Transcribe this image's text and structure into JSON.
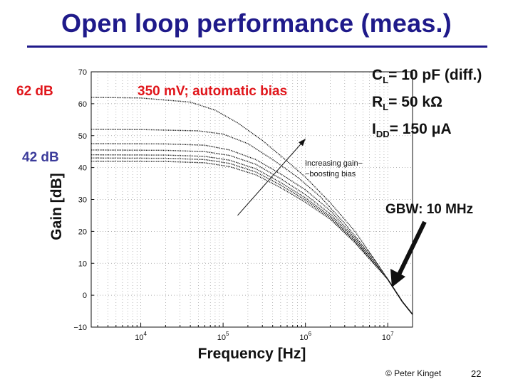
{
  "slide": {
    "title": "Open loop performance (meas.)",
    "credit": "© Peter Kinget",
    "page_number": "22",
    "specs": {
      "cl_label": "C",
      "cl_sub": "L",
      "cl_value": "= 10 pF (diff.)",
      "rl_label": "R",
      "rl_sub": "L",
      "rl_value": "= 50 kΩ",
      "idd_label": "I",
      "idd_sub": "DD",
      "idd_value": "= 150 μA"
    },
    "callouts": {
      "gain_62": "62 dB",
      "gain_42": "42 dB",
      "auto_bias": "350 mV; automatic bias",
      "gbw": "GBW: 10 MHz"
    },
    "colors": {
      "title": "#1f1a8a",
      "callout_red": "#e0161b",
      "callout_blue": "#3b3b9a",
      "curve": "#111111",
      "grid": "#9a9a9a"
    }
  },
  "chart_data": {
    "type": "line",
    "xscale": "log",
    "xlabel": "Frequency [Hz]",
    "ylabel": "Gain [dB]",
    "xlim": [
      2500,
      20000000
    ],
    "ylim": [
      -10,
      70
    ],
    "yticks": [
      -10,
      0,
      10,
      20,
      30,
      40,
      50,
      60,
      70
    ],
    "xticks": [
      {
        "value": 10000,
        "base": "10",
        "exp": "4"
      },
      {
        "value": 100000,
        "base": "10",
        "exp": "5"
      },
      {
        "value": 1000000,
        "base": "10",
        "exp": "6"
      },
      {
        "value": 10000000,
        "base": "10",
        "exp": "7"
      }
    ],
    "grid": true,
    "annotation": {
      "line1": "Increasing gain−",
      "line2": "−boosting bias",
      "arrow_from": [
        150000,
        25
      ],
      "arrow_to": [
        1000000,
        49
      ]
    },
    "series": [
      {
        "dc_gain": 62,
        "x": [
          2500,
          10000,
          40000,
          80000,
          150000,
          300000,
          600000,
          1000000,
          2000000,
          4000000,
          7000000,
          10000000,
          15000000,
          20000000
        ],
        "y": [
          62,
          61.8,
          60.5,
          58,
          54,
          48.5,
          42,
          37,
          29,
          20,
          11,
          5,
          -2,
          -6
        ]
      },
      {
        "dc_gain": 52,
        "x": [
          2500,
          10000,
          50000,
          100000,
          200000,
          400000,
          800000,
          1500000,
          3000000,
          6000000,
          10000000,
          15000000,
          20000000
        ],
        "y": [
          52,
          51.9,
          51.5,
          50.5,
          47.5,
          42.5,
          37,
          31,
          22.5,
          13,
          5,
          -2,
          -6
        ]
      },
      {
        "dc_gain": 47.5,
        "x": [
          2500,
          20000,
          60000,
          120000,
          250000,
          500000,
          1000000,
          2000000,
          4000000,
          7000000,
          10000000,
          15000000,
          20000000
        ],
        "y": [
          47.5,
          47.4,
          47,
          45.5,
          42.5,
          38,
          33,
          26.5,
          18,
          10.5,
          5,
          -2,
          -6
        ]
      },
      {
        "dc_gain": 45.5,
        "x": [
          2500,
          20000,
          60000,
          120000,
          250000,
          500000,
          1000000,
          2000000,
          4000000,
          7000000,
          10000000,
          15000000,
          20000000
        ],
        "y": [
          45.5,
          45.4,
          45,
          43.8,
          41,
          36.5,
          31.5,
          25.5,
          17.5,
          10,
          5,
          -2,
          -6
        ]
      },
      {
        "dc_gain": 44,
        "x": [
          2500,
          20000,
          60000,
          120000,
          250000,
          500000,
          1000000,
          2000000,
          4000000,
          7000000,
          10000000,
          15000000,
          20000000
        ],
        "y": [
          44,
          43.9,
          43.5,
          42.3,
          39.6,
          35.3,
          30.5,
          24.8,
          17,
          9.8,
          5,
          -2,
          -6
        ]
      },
      {
        "dc_gain": 43,
        "x": [
          2500,
          20000,
          60000,
          120000,
          250000,
          500000,
          1000000,
          2000000,
          4000000,
          7000000,
          10000000,
          15000000,
          20000000
        ],
        "y": [
          43,
          42.9,
          42.5,
          41.3,
          38.6,
          34.5,
          29.8,
          24.3,
          16.7,
          9.6,
          5,
          -2,
          -6
        ]
      },
      {
        "dc_gain": 42,
        "x": [
          2500,
          20000,
          60000,
          120000,
          250000,
          500000,
          1000000,
          2000000,
          4000000,
          7000000,
          10000000,
          15000000,
          20000000
        ],
        "y": [
          42,
          41.9,
          41.5,
          40.3,
          37.7,
          33.7,
          29.1,
          23.8,
          16.4,
          9.4,
          5,
          -2,
          -6
        ]
      }
    ]
  }
}
